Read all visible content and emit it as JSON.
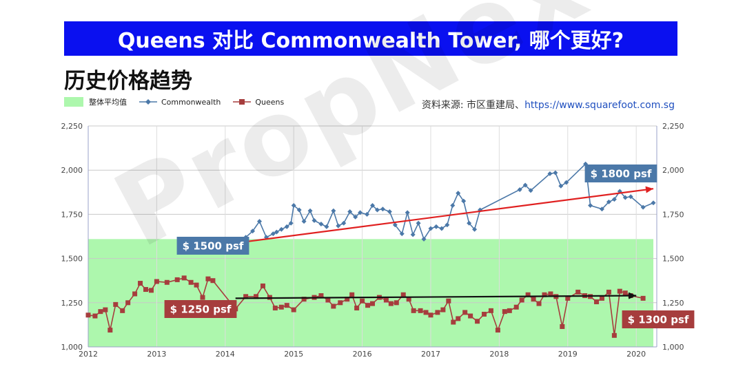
{
  "banner": {
    "title": "Queens 对比 Commonwealth Tower, 哪个更好?"
  },
  "subtitle": "历史价格趋势",
  "source": {
    "prefix": "资料来源: 市区重建局、",
    "url": "https://www.squarefoot.com.sg"
  },
  "watermark": "PropNex",
  "colors": {
    "banner_bg": "#0a10f0",
    "average_band": "#adf7ad",
    "commonwealth": "#4b78a8",
    "queens": "#a63d3d",
    "commonwealth_trend": "#e02020",
    "queens_trend": "#111111"
  },
  "legend": {
    "average": "整体平均值",
    "commonwealth": "Commonwealth",
    "queens": "Queens"
  },
  "chart_data": {
    "type": "line",
    "x_axis": {
      "range": [
        2012,
        2020.3
      ],
      "ticks": [
        "2012",
        "2013",
        "2014",
        "2015",
        "2016",
        "2017",
        "2018",
        "2019",
        "2020"
      ]
    },
    "y_axis": {
      "range": [
        1000,
        2250
      ],
      "ticks": [
        "1,000",
        "1,250",
        "1,500",
        "1,750",
        "2,000",
        "2,250"
      ],
      "mirrored_right": true
    },
    "grid": true,
    "average_band": {
      "label": "整体平均值",
      "y_min": 1000,
      "y_max": 1610,
      "x_start": 2012,
      "x_end": 2020.25
    },
    "series": [
      {
        "name": "Commonwealth",
        "marker": "diamond",
        "points": [
          [
            2014.3,
            1620
          ],
          [
            2014.4,
            1655
          ],
          [
            2014.5,
            1710
          ],
          [
            2014.6,
            1620
          ],
          [
            2014.7,
            1640
          ],
          [
            2014.75,
            1650
          ],
          [
            2014.82,
            1665
          ],
          [
            2014.9,
            1680
          ],
          [
            2014.96,
            1700
          ],
          [
            2015.0,
            1800
          ],
          [
            2015.08,
            1775
          ],
          [
            2015.15,
            1710
          ],
          [
            2015.24,
            1770
          ],
          [
            2015.3,
            1715
          ],
          [
            2015.4,
            1695
          ],
          [
            2015.48,
            1680
          ],
          [
            2015.58,
            1770
          ],
          [
            2015.65,
            1685
          ],
          [
            2015.73,
            1700
          ],
          [
            2015.82,
            1765
          ],
          [
            2015.9,
            1735
          ],
          [
            2015.97,
            1760
          ],
          [
            2016.07,
            1750
          ],
          [
            2016.15,
            1800
          ],
          [
            2016.22,
            1775
          ],
          [
            2016.3,
            1780
          ],
          [
            2016.4,
            1765
          ],
          [
            2016.48,
            1690
          ],
          [
            2016.58,
            1640
          ],
          [
            2016.66,
            1760
          ],
          [
            2016.74,
            1635
          ],
          [
            2016.82,
            1700
          ],
          [
            2016.9,
            1610
          ],
          [
            2017.0,
            1670
          ],
          [
            2017.08,
            1680
          ],
          [
            2017.16,
            1670
          ],
          [
            2017.24,
            1690
          ],
          [
            2017.32,
            1800
          ],
          [
            2017.4,
            1870
          ],
          [
            2017.48,
            1825
          ],
          [
            2017.56,
            1700
          ],
          [
            2017.64,
            1665
          ],
          [
            2017.72,
            1775
          ],
          [
            2018.3,
            1890
          ],
          [
            2018.38,
            1915
          ],
          [
            2018.46,
            1885
          ],
          [
            2018.74,
            1980
          ],
          [
            2018.82,
            1985
          ],
          [
            2018.9,
            1910
          ],
          [
            2018.98,
            1930
          ],
          [
            2019.26,
            2035
          ],
          [
            2019.33,
            1800
          ],
          [
            2019.5,
            1780
          ],
          [
            2019.6,
            1820
          ],
          [
            2019.68,
            1835
          ],
          [
            2019.76,
            1880
          ],
          [
            2019.84,
            1845
          ],
          [
            2019.92,
            1850
          ],
          [
            2020.1,
            1790
          ],
          [
            2020.25,
            1815
          ]
        ]
      },
      {
        "name": "Queens",
        "marker": "square",
        "points": [
          [
            2012.0,
            1180
          ],
          [
            2012.1,
            1175
          ],
          [
            2012.18,
            1200
          ],
          [
            2012.25,
            1210
          ],
          [
            2012.32,
            1095
          ],
          [
            2012.4,
            1240
          ],
          [
            2012.5,
            1205
          ],
          [
            2012.58,
            1250
          ],
          [
            2012.68,
            1300
          ],
          [
            2012.76,
            1360
          ],
          [
            2012.84,
            1325
          ],
          [
            2012.92,
            1320
          ],
          [
            2013.0,
            1370
          ],
          [
            2013.15,
            1365
          ],
          [
            2013.3,
            1380
          ],
          [
            2013.4,
            1390
          ],
          [
            2013.5,
            1365
          ],
          [
            2013.58,
            1350
          ],
          [
            2013.67,
            1280
          ],
          [
            2013.75,
            1385
          ],
          [
            2013.82,
            1375
          ],
          [
            2014.15,
            1215
          ],
          [
            2014.3,
            1285
          ],
          [
            2014.45,
            1285
          ],
          [
            2014.55,
            1345
          ],
          [
            2014.65,
            1280
          ],
          [
            2014.73,
            1220
          ],
          [
            2014.82,
            1225
          ],
          [
            2014.9,
            1235
          ],
          [
            2015.0,
            1210
          ],
          [
            2015.15,
            1270
          ],
          [
            2015.3,
            1280
          ],
          [
            2015.4,
            1290
          ],
          [
            2015.5,
            1265
          ],
          [
            2015.58,
            1230
          ],
          [
            2015.68,
            1250
          ],
          [
            2015.78,
            1270
          ],
          [
            2015.85,
            1295
          ],
          [
            2015.92,
            1220
          ],
          [
            2016.0,
            1260
          ],
          [
            2016.08,
            1235
          ],
          [
            2016.15,
            1245
          ],
          [
            2016.25,
            1280
          ],
          [
            2016.35,
            1265
          ],
          [
            2016.42,
            1245
          ],
          [
            2016.5,
            1250
          ],
          [
            2016.6,
            1295
          ],
          [
            2016.68,
            1270
          ],
          [
            2016.75,
            1205
          ],
          [
            2016.85,
            1205
          ],
          [
            2016.93,
            1195
          ],
          [
            2017.0,
            1180
          ],
          [
            2017.1,
            1195
          ],
          [
            2017.18,
            1210
          ],
          [
            2017.26,
            1260
          ],
          [
            2017.33,
            1140
          ],
          [
            2017.4,
            1160
          ],
          [
            2017.5,
            1195
          ],
          [
            2017.58,
            1175
          ],
          [
            2017.68,
            1145
          ],
          [
            2017.78,
            1185
          ],
          [
            2017.88,
            1205
          ],
          [
            2017.98,
            1095
          ],
          [
            2018.08,
            1200
          ],
          [
            2018.15,
            1205
          ],
          [
            2018.25,
            1225
          ],
          [
            2018.33,
            1265
          ],
          [
            2018.42,
            1295
          ],
          [
            2018.5,
            1270
          ],
          [
            2018.58,
            1245
          ],
          [
            2018.66,
            1295
          ],
          [
            2018.75,
            1300
          ],
          [
            2018.83,
            1285
          ],
          [
            2018.92,
            1115
          ],
          [
            2019.0,
            1275
          ],
          [
            2019.15,
            1310
          ],
          [
            2019.25,
            1290
          ],
          [
            2019.33,
            1285
          ],
          [
            2019.42,
            1255
          ],
          [
            2019.5,
            1275
          ],
          [
            2019.6,
            1310
          ],
          [
            2019.68,
            1065
          ],
          [
            2019.76,
            1315
          ],
          [
            2019.84,
            1305
          ],
          [
            2019.92,
            1290
          ],
          [
            2020.1,
            1275
          ]
        ]
      }
    ],
    "trendlines": [
      {
        "series": "Commonwealth",
        "from": [
          2014.3,
          1595
        ],
        "to": [
          2020.25,
          1895
        ],
        "label": "$ 1500 psf",
        "end_label": "$ 1800 psf"
      },
      {
        "series": "Queens",
        "from": [
          2014.15,
          1275
        ],
        "to": [
          2020.0,
          1290
        ],
        "label": "$ 1250 psf",
        "end_label": "$ 1300 psf"
      }
    ]
  }
}
